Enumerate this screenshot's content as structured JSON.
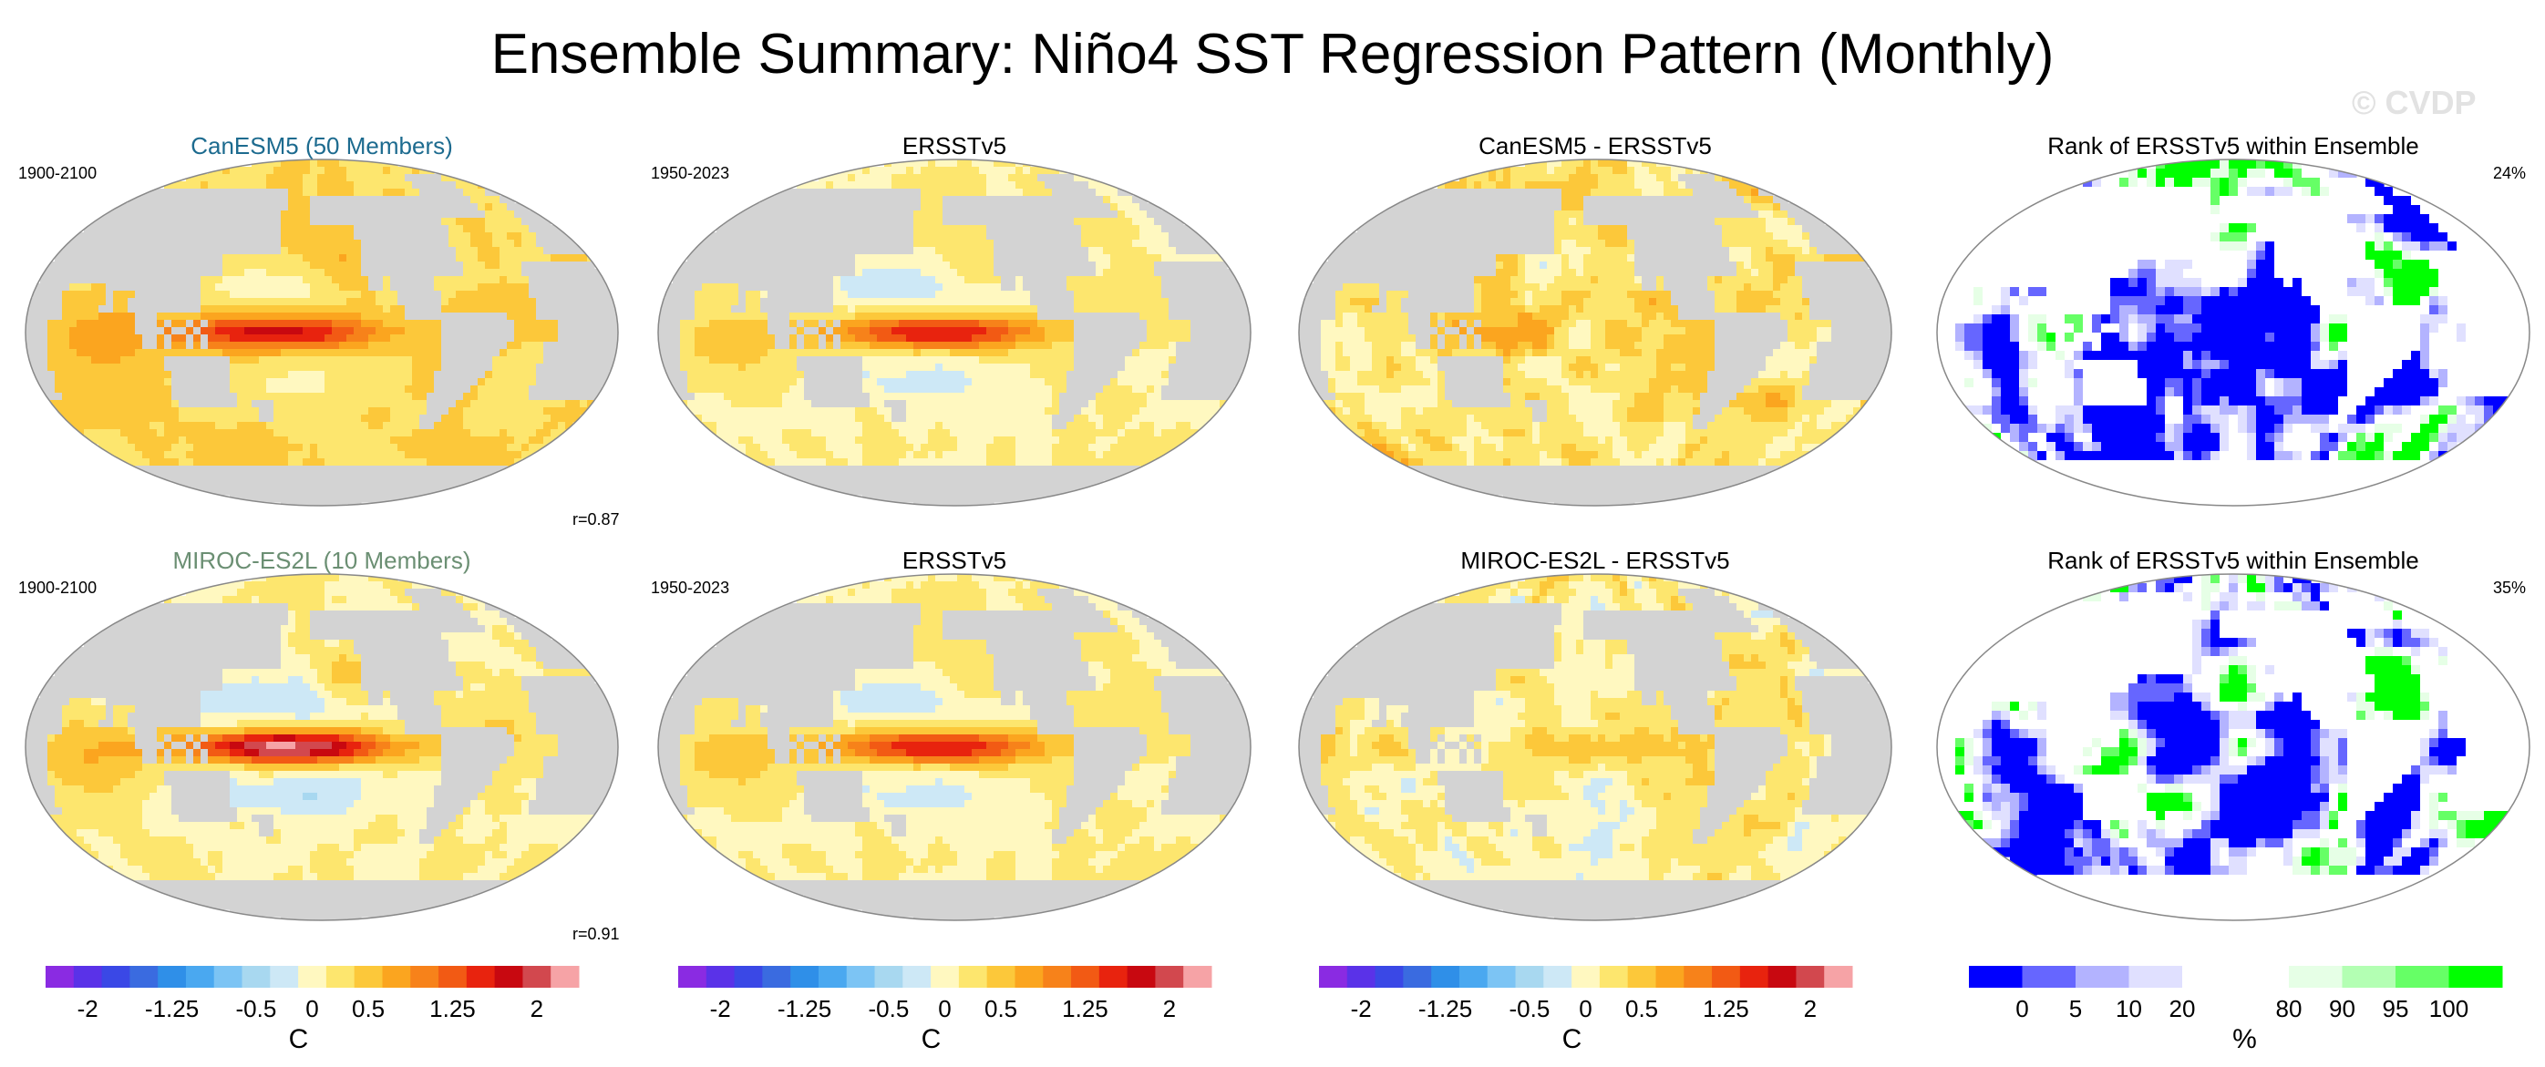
{
  "title": "Ensemble Summary: Niño4 SST Regression Pattern (Monthly)",
  "watermark": "© CVDP",
  "colors": {
    "model1_title": "#1d6b8f",
    "model2_title": "#6b8f73",
    "land": "#d3d3d3",
    "coast": "#555555"
  },
  "icons": {
    "map_outline": "ellipse-map",
    "land_mask": "continents"
  },
  "panels": [
    {
      "row": 1,
      "col": 1,
      "kind": "model",
      "title": "CanESM5 (50 Members)",
      "title_color": "#1d6b8f",
      "left_label": "1900-2100",
      "right_label": "",
      "corner_label": "r=0.87",
      "field_hint": "model_can"
    },
    {
      "row": 1,
      "col": 2,
      "kind": "obs",
      "title": "ERSSTv5",
      "left_label": "1950-2023",
      "right_label": "",
      "corner_label": "",
      "field_hint": "obs"
    },
    {
      "row": 1,
      "col": 3,
      "kind": "diff",
      "title": "CanESM5 - ERSSTv5",
      "left_label": "",
      "right_label": "",
      "corner_label": "",
      "field_hint": "diff_can"
    },
    {
      "row": 1,
      "col": 4,
      "kind": "rank",
      "title": "Rank of ERSSTv5 within Ensemble",
      "left_label": "",
      "right_label": "24%",
      "corner_label": "",
      "field_hint": "rank_can"
    },
    {
      "row": 2,
      "col": 1,
      "kind": "model",
      "title": "MIROC-ES2L (10 Members)",
      "title_color": "#6b8f73",
      "left_label": "1900-2100",
      "right_label": "",
      "corner_label": "r=0.91",
      "field_hint": "model_miroc"
    },
    {
      "row": 2,
      "col": 2,
      "kind": "obs",
      "title": "ERSSTv5",
      "left_label": "1950-2023",
      "right_label": "",
      "corner_label": "",
      "field_hint": "obs"
    },
    {
      "row": 2,
      "col": 3,
      "kind": "diff",
      "title": "MIROC-ES2L - ERSSTv5",
      "left_label": "",
      "right_label": "",
      "corner_label": "",
      "field_hint": "diff_miroc"
    },
    {
      "row": 2,
      "col": 4,
      "kind": "rank",
      "title": "Rank of ERSSTv5 within Ensemble",
      "left_label": "",
      "right_label": "35%",
      "corner_label": "",
      "field_hint": "rank_miroc"
    }
  ],
  "colorbars": [
    {
      "type": "sst",
      "colors": [
        "#8a2be2",
        "#5a32e8",
        "#3a48e6",
        "#3a6be0",
        "#2f8fe8",
        "#4aa8f0",
        "#7cc4f4",
        "#a8d8f0",
        "#cde8f6",
        "#fff8c0",
        "#fde66e",
        "#fcc83a",
        "#fba51f",
        "#f7821a",
        "#f25a14",
        "#e8230e",
        "#c80810",
        "#d2484e",
        "#f6a3a6"
      ],
      "levels": [
        -2.25,
        -2,
        -1.75,
        -1.5,
        -1.25,
        -1,
        -0.75,
        -0.5,
        -0.25,
        0,
        0.25,
        0.5,
        0.75,
        1,
        1.25,
        1.5,
        1.75,
        2,
        2.25
      ],
      "tick_labels": [
        "-2",
        "-1.25",
        "-0.5",
        "0",
        "0.5",
        "1.25",
        "2"
      ],
      "tick_values": [
        -2,
        -1.25,
        -0.5,
        0,
        0.5,
        1.25,
        2
      ],
      "unit": "C"
    },
    {
      "type": "rank",
      "colors": [
        "#0000ff",
        "#6666ff",
        "#b3b3ff",
        "#e0e0ff",
        "#ffffff",
        "#ffffff",
        "#e6ffe6",
        "#b3ffb3",
        "#66ff66",
        "#00ff00"
      ],
      "tick_labels": [
        "0",
        "5",
        "10",
        "20",
        "80",
        "90",
        "95",
        "100"
      ],
      "tick_values": [
        0,
        5,
        10,
        20,
        80,
        90,
        95,
        100
      ],
      "unit": "%"
    }
  ]
}
